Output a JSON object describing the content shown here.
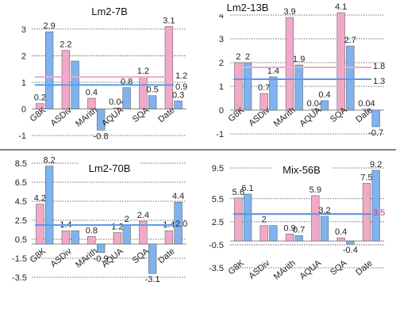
{
  "chart_data": [
    {
      "type": "bar",
      "title": "Lm2-7B",
      "categories": [
        "G8K",
        "ASDiv",
        "MArith",
        "AQUA",
        "SQA",
        "Date"
      ],
      "yticks": [
        "-1",
        "0",
        "1",
        "2",
        "3"
      ],
      "ylim": [
        -1,
        3.5
      ],
      "series": [
        {
          "values": [
            0.2,
            2.2,
            0.4,
            0.04,
            1.2,
            3.1
          ],
          "labels": [
            "0.2",
            "2.2",
            "0.4",
            "0.04",
            "1.2",
            "3.1"
          ],
          "color": "#f2a9c9"
        },
        {
          "values": [
            2.9,
            1.8,
            -0.8,
            0.8,
            0.5,
            0.3
          ],
          "labels": [
            "2.9",
            "",
            "-0.8",
            "0.8",
            "0.5",
            "0.3"
          ],
          "color": "#7fb3ef"
        }
      ],
      "hlines": [
        {
          "value": 1.2,
          "label": "1.2",
          "color": "#f2a9c9",
          "label_color": "#222222"
        },
        {
          "value": 0.9,
          "label": "0.9",
          "color": "#5b9be8",
          "label_color": "#222222"
        }
      ]
    },
    {
      "type": "bar",
      "title": "Lm2-13B",
      "categories": [
        "G8K",
        "ASDiv",
        "MArith",
        "AQUA",
        "SQA",
        "Date"
      ],
      "yticks": [
        "-1",
        "0",
        "1",
        "2",
        "3",
        "4"
      ],
      "ylim": [
        -1,
        4.3
      ],
      "series": [
        {
          "values": [
            2.0,
            0.7,
            3.9,
            0.04,
            4.1,
            0.04
          ],
          "labels": [
            "2",
            "0.7",
            "3.9",
            "0.04",
            "4.1",
            "0.04"
          ],
          "color": "#f2a9c9"
        },
        {
          "values": [
            2.0,
            1.4,
            1.9,
            0.4,
            2.7,
            -0.7
          ],
          "labels": [
            "2",
            "1.4",
            "1.9",
            "0.4",
            "2.7",
            "-0.7"
          ],
          "color": "#7fb3ef"
        }
      ],
      "hlines": [
        {
          "value": 1.8,
          "label": "1.8",
          "color": "#f2a9c9",
          "label_color": "#222222"
        },
        {
          "value": 1.3,
          "label": "1.3",
          "color": "#5b9be8",
          "label_color": "#222222"
        }
      ]
    },
    {
      "type": "bar",
      "title": "Lm2-70B",
      "categories": [
        "G8K",
        "ASDiv",
        "MArith",
        "AQUA",
        "SQA",
        "Date"
      ],
      "yticks": [
        "-3.5",
        "-1.5",
        "0.5",
        "2.5",
        "4.5",
        "6.5",
        "8.5"
      ],
      "ylim": [
        -3.5,
        8.5
      ],
      "series": [
        {
          "values": [
            4.2,
            1.4,
            0.8,
            1.2,
            2.4,
            1.4
          ],
          "labels": [
            "4.2",
            "1.4",
            "0.8",
            "1.2",
            "2.4",
            "1.4"
          ],
          "color": "#f2a9c9"
        },
        {
          "values": [
            8.2,
            1.4,
            -0.9,
            2.0,
            -3.1,
            4.4
          ],
          "labels": [
            "8.2",
            "",
            "-0.9",
            "2",
            "-3.1",
            "4.4"
          ],
          "color": "#7fb3ef"
        }
      ],
      "hlines": [
        {
          "value": 2.0,
          "label": "2.0",
          "color": "#5b9be8",
          "label_color": "#222222"
        }
      ]
    },
    {
      "type": "bar",
      "title": "Mix-56B",
      "categories": [
        "G8K",
        "ASDiv",
        "MArith",
        "AQUA",
        "SQA",
        "Date"
      ],
      "yticks": [
        "-3.5",
        "-0.5",
        "2.5",
        "5.5",
        "9.5"
      ],
      "ylim": [
        -3.5,
        9.5
      ],
      "series": [
        {
          "values": [
            5.6,
            2.0,
            0.9,
            5.9,
            0.4,
            7.5
          ],
          "labels": [
            "5.6",
            "2",
            "0.9",
            "5.9",
            "0.4",
            "7.5"
          ],
          "color": "#f2a9c9"
        },
        {
          "values": [
            6.1,
            2.0,
            0.7,
            3.2,
            -0.4,
            9.2
          ],
          "labels": [
            "6.1",
            "",
            "0.7",
            "3.2",
            "-0.4",
            "9.2"
          ],
          "color": "#7fb3ef"
        }
      ],
      "hlines": [
        {
          "value": 3.5,
          "label": "3.5",
          "color": "#e0306a",
          "label_color": "#e0306a"
        },
        {
          "value": 3.5,
          "label": "",
          "color": "#5b9be8",
          "label_color": "#222222"
        }
      ]
    }
  ]
}
